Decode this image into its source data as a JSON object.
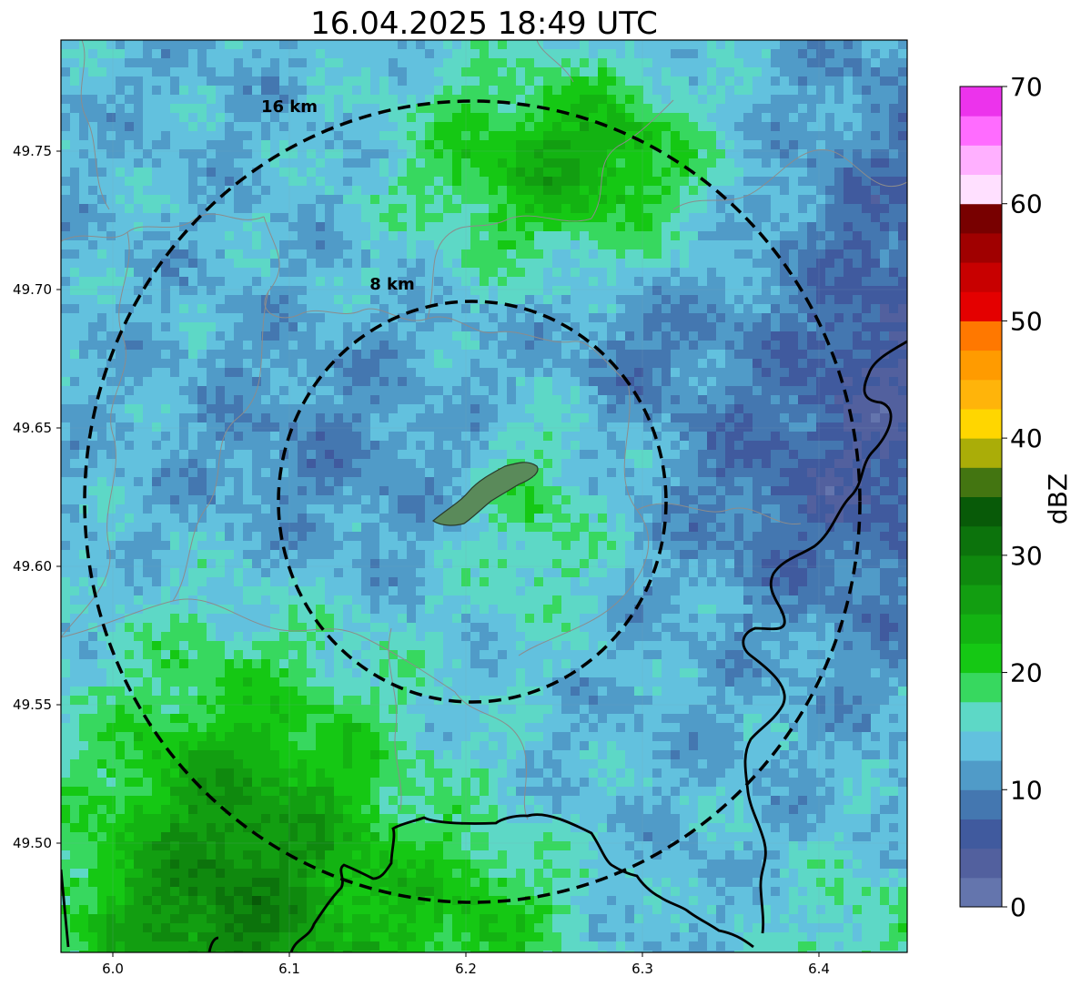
{
  "title": "16.04.2025 18:49 UTC",
  "map": {
    "x_ticks": [
      "6.0",
      "6.1",
      "6.2",
      "6.3",
      "6.4"
    ],
    "y_ticks": [
      "49.75",
      "49.70",
      "49.65",
      "49.60",
      "49.55",
      "49.50"
    ],
    "rings": [
      {
        "label": "8 km",
        "radius_km": 8
      },
      {
        "label": "16 km",
        "radius_km": 16
      }
    ],
    "center": {
      "lon": 6.2,
      "lat": 49.623
    },
    "colors": {
      "ring": "#000000",
      "border": "#000000",
      "commune": "#888888",
      "city_fill": "#5a8a5a"
    }
  },
  "colorbar": {
    "label": "dBZ",
    "ticks": [
      "0",
      "10",
      "20",
      "30",
      "40",
      "50",
      "60",
      "70"
    ],
    "colors": [
      "#6475ad",
      "#52609e",
      "#405a9e",
      "#4477b0",
      "#509bc8",
      "#62c1de",
      "#5dd8c6",
      "#37d85f",
      "#15c814",
      "#13b312",
      "#129e11",
      "#0f890e",
      "#0c730c",
      "#085a08",
      "#437511",
      "#aaad08",
      "#ffd600",
      "#ffb40a",
      "#ff9b00",
      "#ff7800",
      "#e40000",
      "#c80000",
      "#a00000",
      "#780000",
      "#ffe0ff",
      "#ffb0ff",
      "#ff6cff",
      "#ec33ec"
    ]
  }
}
